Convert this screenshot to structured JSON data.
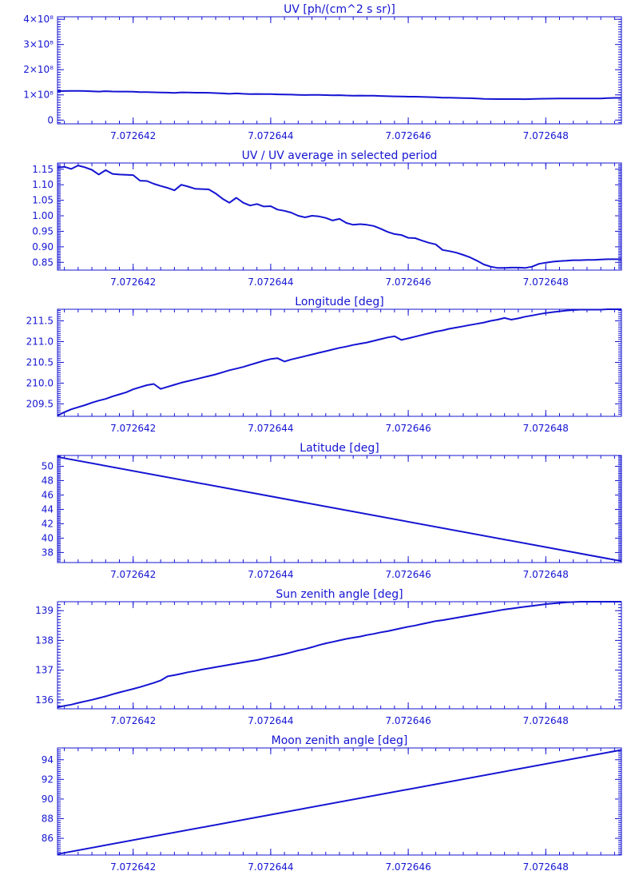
{
  "colors": {
    "line": "#1414d2",
    "background": "#ffffff"
  },
  "chart_data": [
    {
      "type": "line",
      "title": "UV [ph/(cm^2 s sr)]",
      "xlim": [
        7.0726409,
        7.0726491
      ],
      "xticks": [
        7.072642,
        7.072644,
        7.072646,
        7.072648
      ],
      "xtick_labels": [
        "7.072642",
        "7.072644",
        "7.072646",
        "7.072648"
      ],
      "ylim": [
        -0.15,
        4.1
      ],
      "yticks": [
        0,
        1,
        2,
        3,
        4
      ],
      "ytick_labels": [
        "0",
        "1×10⁸",
        "2×10⁸",
        "3×10⁸",
        "4×10⁸"
      ],
      "ylabel": "",
      "series": [
        {
          "x": [
            7.0726409,
            7.072641,
            7.0726411,
            7.0726412,
            7.0726413,
            7.0726414,
            7.0726415,
            7.0726416,
            7.0726417,
            7.0726418,
            7.0726419,
            7.072642,
            7.0726421,
            7.0726422,
            7.0726423,
            7.0726424,
            7.0726425,
            7.0726426,
            7.0726427,
            7.0726428,
            7.0726429,
            7.072643,
            7.0726431,
            7.0726432,
            7.0726433,
            7.0726434,
            7.0726435,
            7.0726436,
            7.0726437,
            7.0726438,
            7.0726439,
            7.072644,
            7.0726441,
            7.0726442,
            7.0726443,
            7.0726444,
            7.0726445,
            7.0726446,
            7.0726447,
            7.0726448,
            7.0726449,
            7.072645,
            7.0726451,
            7.0726452,
            7.0726453,
            7.0726454,
            7.0726455,
            7.0726456,
            7.0726457,
            7.0726458,
            7.0726459,
            7.072646,
            7.0726461,
            7.0726462,
            7.0726463,
            7.0726464,
            7.0726465,
            7.0726466,
            7.0726467,
            7.0726468,
            7.0726469,
            7.072647,
            7.0726471,
            7.0726472,
            7.0726473,
            7.0726474,
            7.0726475,
            7.0726476,
            7.0726477,
            7.0726478,
            7.0726479,
            7.072648,
            7.0726481,
            7.0726482,
            7.0726483,
            7.0726484,
            7.0726485,
            7.0726486,
            7.0726487,
            7.0726488,
            7.0726489,
            7.072649,
            7.0726491
          ],
          "y": [
            1.15,
            1.155,
            1.158,
            1.16,
            1.155,
            1.145,
            1.132,
            1.147,
            1.135,
            1.131,
            1.13,
            1.129,
            1.111,
            1.11,
            1.102,
            1.096,
            1.09,
            1.082,
            1.1,
            1.095,
            1.087,
            1.086,
            1.085,
            1.071,
            1.057,
            1.042,
            1.058,
            1.042,
            1.033,
            1.037,
            1.03,
            1.031,
            1.02,
            1.015,
            1.01,
            1.0,
            0.995,
            1.0,
            0.998,
            0.993,
            0.985,
            0.99,
            0.976,
            0.971,
            0.972,
            0.97,
            0.967,
            0.958,
            0.948,
            0.94,
            0.938,
            0.929,
            0.928,
            0.92,
            0.913,
            0.907,
            0.89,
            0.886,
            0.88,
            0.873,
            0.867,
            0.855,
            0.842,
            0.836,
            0.832,
            0.833,
            0.834,
            0.833,
            0.831,
            0.836,
            0.845,
            0.85,
            0.853,
            0.856,
            0.858,
            0.86,
            0.86,
            0.86,
            0.86,
            0.86,
            0.87,
            0.88,
            0.88
          ]
        }
      ]
    },
    {
      "type": "line",
      "title": "UV / UV average in selected period",
      "xlim": [
        7.0726409,
        7.0726491
      ],
      "xticks": [
        7.072642,
        7.072644,
        7.072646,
        7.072648
      ],
      "xtick_labels": [
        "7.072642",
        "7.072644",
        "7.072646",
        "7.072648"
      ],
      "ylim": [
        0.825,
        1.17
      ],
      "yticks": [
        0.85,
        0.9,
        0.95,
        1.0,
        1.05,
        1.1,
        1.15
      ],
      "ytick_labels": [
        "0.85",
        "0.90",
        "0.95",
        "1.00",
        "1.05",
        "1.10",
        "1.15"
      ],
      "ylabel": "",
      "series": [
        {
          "x": [
            7.0726409,
            7.072641,
            7.0726411,
            7.0726412,
            7.0726413,
            7.0726414,
            7.0726415,
            7.0726416,
            7.0726417,
            7.0726418,
            7.0726419,
            7.072642,
            7.0726421,
            7.0726422,
            7.0726423,
            7.0726424,
            7.0726425,
            7.0726426,
            7.0726427,
            7.0726428,
            7.0726429,
            7.072643,
            7.0726431,
            7.0726432,
            7.0726433,
            7.0726434,
            7.0726435,
            7.0726436,
            7.0726437,
            7.0726438,
            7.0726439,
            7.072644,
            7.0726441,
            7.0726442,
            7.0726443,
            7.0726444,
            7.0726445,
            7.0726446,
            7.0726447,
            7.0726448,
            7.0726449,
            7.072645,
            7.0726451,
            7.0726452,
            7.0726453,
            7.0726454,
            7.0726455,
            7.0726456,
            7.0726457,
            7.0726458,
            7.0726459,
            7.072646,
            7.0726461,
            7.0726462,
            7.0726463,
            7.0726464,
            7.0726465,
            7.0726466,
            7.0726467,
            7.0726468,
            7.0726469,
            7.072647,
            7.0726471,
            7.0726472,
            7.0726473,
            7.0726474,
            7.0726475,
            7.0726476,
            7.0726477,
            7.0726478,
            7.0726479,
            7.072648,
            7.0726481,
            7.0726482,
            7.0726483,
            7.0726484,
            7.0726485,
            7.0726486,
            7.0726487,
            7.0726488,
            7.0726489,
            7.072649,
            7.0726491
          ],
          "y": [
            1.155,
            1.158,
            1.151,
            1.162,
            1.156,
            1.148,
            1.133,
            1.147,
            1.135,
            1.133,
            1.132,
            1.131,
            1.113,
            1.112,
            1.103,
            1.096,
            1.09,
            1.082,
            1.1,
            1.094,
            1.087,
            1.086,
            1.085,
            1.072,
            1.055,
            1.042,
            1.058,
            1.042,
            1.033,
            1.038,
            1.03,
            1.031,
            1.02,
            1.016,
            1.01,
            1.0,
            0.995,
            1.0,
            0.998,
            0.993,
            0.985,
            0.99,
            0.977,
            0.971,
            0.973,
            0.971,
            0.967,
            0.958,
            0.948,
            0.941,
            0.938,
            0.929,
            0.928,
            0.92,
            0.913,
            0.908,
            0.89,
            0.886,
            0.881,
            0.874,
            0.866,
            0.855,
            0.843,
            0.836,
            0.832,
            0.832,
            0.833,
            0.833,
            0.832,
            0.836,
            0.845,
            0.849,
            0.852,
            0.854,
            0.855,
            0.857,
            0.857,
            0.858,
            0.858,
            0.859,
            0.86,
            0.86,
            0.86
          ]
        }
      ]
    },
    {
      "type": "line",
      "title": "Longitude [deg]",
      "xlim": [
        7.0726409,
        7.0726491
      ],
      "xticks": [
        7.072642,
        7.072644,
        7.072646,
        7.072648
      ],
      "xtick_labels": [
        "7.072642",
        "7.072644",
        "7.072646",
        "7.072648"
      ],
      "ylim": [
        209.2,
        211.78
      ],
      "yticks": [
        209.5,
        210.0,
        210.5,
        211.0,
        211.5
      ],
      "ytick_labels": [
        "209.5",
        "210.0",
        "210.5",
        "211.0",
        "211.5"
      ],
      "ylabel": "",
      "series": [
        {
          "x": [
            7.0726409,
            7.072641,
            7.0726411,
            7.0726412,
            7.0726413,
            7.0726414,
            7.0726415,
            7.0726416,
            7.0726417,
            7.0726418,
            7.0726419,
            7.072642,
            7.0726421,
            7.0726422,
            7.0726423,
            7.0726424,
            7.0726425,
            7.0726426,
            7.0726427,
            7.0726428,
            7.0726429,
            7.072643,
            7.0726431,
            7.0726432,
            7.0726433,
            7.0726434,
            7.0726435,
            7.0726436,
            7.0726437,
            7.0726438,
            7.0726439,
            7.072644,
            7.0726441,
            7.0726442,
            7.0726443,
            7.0726444,
            7.0726445,
            7.0726446,
            7.0726447,
            7.0726448,
            7.0726449,
            7.072645,
            7.0726451,
            7.0726452,
            7.0726453,
            7.0726454,
            7.0726455,
            7.0726456,
            7.0726457,
            7.0726458,
            7.0726459,
            7.072646,
            7.0726461,
            7.0726462,
            7.0726463,
            7.0726464,
            7.0726465,
            7.0726466,
            7.0726467,
            7.0726468,
            7.0726469,
            7.072647,
            7.0726471,
            7.0726472,
            7.0726473,
            7.0726474,
            7.0726475,
            7.0726476,
            7.0726477,
            7.0726478,
            7.0726479,
            7.072648,
            7.0726481,
            7.0726482,
            7.0726483,
            7.0726484,
            7.0726485,
            7.0726486,
            7.0726487,
            7.0726488,
            7.0726489,
            7.072649,
            7.0726491
          ],
          "y": [
            209.22,
            209.3,
            209.37,
            209.42,
            209.47,
            209.53,
            209.58,
            209.62,
            209.68,
            209.73,
            209.78,
            209.85,
            209.9,
            209.95,
            209.98,
            209.86,
            209.91,
            209.96,
            210.01,
            210.05,
            210.09,
            210.13,
            210.17,
            210.21,
            210.26,
            210.31,
            210.35,
            210.39,
            210.44,
            210.49,
            210.54,
            210.58,
            210.6,
            210.52,
            210.57,
            210.61,
            210.65,
            210.69,
            210.73,
            210.77,
            210.81,
            210.85,
            210.88,
            210.92,
            210.95,
            210.98,
            211.02,
            211.06,
            211.1,
            211.13,
            211.04,
            211.08,
            211.12,
            211.16,
            211.2,
            211.24,
            211.27,
            211.31,
            211.34,
            211.37,
            211.4,
            211.43,
            211.46,
            211.5,
            211.53,
            211.57,
            211.53,
            211.56,
            211.6,
            211.63,
            211.66,
            211.69,
            211.71,
            211.73,
            211.75,
            211.76,
            211.77,
            211.77,
            211.77,
            211.77,
            211.78,
            211.78,
            211.78
          ]
        }
      ]
    },
    {
      "type": "line",
      "title": "Latitude [deg]",
      "xlim": [
        7.0726409,
        7.0726491
      ],
      "xticks": [
        7.072642,
        7.072644,
        7.072646,
        7.072648
      ],
      "xtick_labels": [
        "7.072642",
        "7.072644",
        "7.072646",
        "7.072648"
      ],
      "ylim": [
        36.6,
        51.5
      ],
      "yticks": [
        38,
        40,
        42,
        44,
        46,
        48,
        50
      ],
      "ytick_labels": [
        "38",
        "40",
        "42",
        "44",
        "46",
        "48",
        "50"
      ],
      "ylabel": "",
      "series": [
        {
          "x": [
            7.0726409,
            7.0726491
          ],
          "y": [
            51.3,
            36.8
          ]
        }
      ]
    },
    {
      "type": "line",
      "title": "Sun zenith angle [deg]",
      "xlim": [
        7.0726409,
        7.0726491
      ],
      "xticks": [
        7.072642,
        7.072644,
        7.072646,
        7.072648
      ],
      "xtick_labels": [
        "7.072642",
        "7.072644",
        "7.072646",
        "7.072648"
      ],
      "ylim": [
        135.7,
        139.3
      ],
      "yticks": [
        136,
        137,
        138,
        139
      ],
      "ytick_labels": [
        "136",
        "137",
        "138",
        "139"
      ],
      "ylabel": "",
      "series": [
        {
          "x": [
            7.0726409,
            7.072641,
            7.0726411,
            7.0726412,
            7.0726413,
            7.0726414,
            7.0726415,
            7.0726416,
            7.0726417,
            7.0726418,
            7.0726419,
            7.072642,
            7.0726421,
            7.0726422,
            7.0726423,
            7.0726424,
            7.0726425,
            7.0726426,
            7.0726427,
            7.0726428,
            7.0726429,
            7.072643,
            7.0726431,
            7.0726432,
            7.0726433,
            7.0726434,
            7.0726435,
            7.0726436,
            7.0726437,
            7.0726438,
            7.0726439,
            7.072644,
            7.0726441,
            7.0726442,
            7.0726443,
            7.0726444,
            7.0726445,
            7.0726446,
            7.0726447,
            7.0726448,
            7.0726449,
            7.072645,
            7.0726451,
            7.0726452,
            7.0726453,
            7.0726454,
            7.0726455,
            7.0726456,
            7.0726457,
            7.0726458,
            7.0726459,
            7.072646,
            7.0726461,
            7.0726462,
            7.0726463,
            7.0726464,
            7.0726465,
            7.0726466,
            7.0726467,
            7.0726468,
            7.0726469,
            7.072647,
            7.0726471,
            7.0726472,
            7.0726473,
            7.0726474,
            7.0726475,
            7.0726476,
            7.0726477,
            7.0726478,
            7.0726479,
            7.072648,
            7.0726481,
            7.0726482,
            7.0726483,
            7.0726484,
            7.0726485,
            7.0726486,
            7.0726487,
            7.0726488,
            7.0726489,
            7.072649,
            7.0726491
          ],
          "y": [
            135.75,
            135.8,
            135.84,
            135.9,
            135.95,
            136.0,
            136.06,
            136.12,
            136.19,
            136.25,
            136.31,
            136.37,
            136.43,
            136.5,
            136.57,
            136.65,
            136.79,
            136.83,
            136.88,
            136.93,
            136.97,
            137.02,
            137.06,
            137.1,
            137.14,
            137.18,
            137.22,
            137.26,
            137.3,
            137.34,
            137.39,
            137.44,
            137.49,
            137.54,
            137.6,
            137.66,
            137.71,
            137.77,
            137.84,
            137.9,
            137.95,
            138.0,
            138.05,
            138.09,
            138.13,
            138.18,
            138.22,
            138.27,
            138.31,
            138.36,
            138.41,
            138.46,
            138.5,
            138.55,
            138.6,
            138.65,
            138.68,
            138.72,
            138.76,
            138.8,
            138.84,
            138.88,
            138.92,
            138.96,
            139.0,
            139.04,
            139.07,
            139.1,
            139.13,
            139.16,
            139.19,
            139.22,
            139.24,
            139.26,
            139.28,
            139.29,
            139.3,
            139.31,
            139.32,
            139.32,
            139.33,
            139.34,
            139.35
          ]
        }
      ]
    },
    {
      "type": "line",
      "title": "Moon zenith angle [deg]",
      "xlim": [
        7.0726409,
        7.0726491
      ],
      "xticks": [
        7.072642,
        7.072644,
        7.072646,
        7.072648
      ],
      "xtick_labels": [
        "7.072642",
        "7.072644",
        "7.072646",
        "7.072648"
      ],
      "ylim": [
        84.3,
        95.2
      ],
      "yticks": [
        86,
        88,
        90,
        92,
        94
      ],
      "ytick_labels": [
        "86",
        "88",
        "90",
        "92",
        "94"
      ],
      "ylabel": "",
      "series": [
        {
          "x": [
            7.0726409,
            7.0726491
          ],
          "y": [
            84.4,
            95.0
          ]
        }
      ]
    }
  ]
}
